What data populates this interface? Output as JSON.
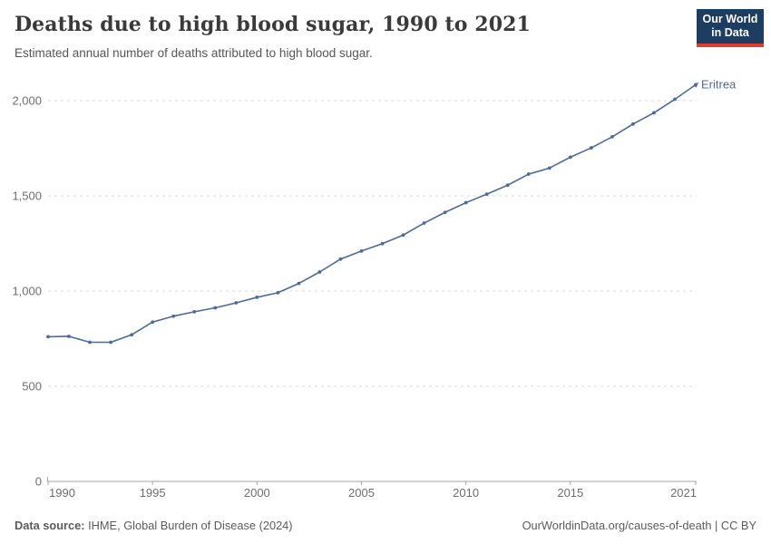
{
  "header": {
    "title": "Deaths due to high blood sugar, 1990 to 2021",
    "subtitle": "Estimated annual number of deaths attributed to high blood sugar."
  },
  "logo": {
    "line1": "Our World",
    "line2": "in Data",
    "bg_color": "#1d3d63",
    "bar_color": "#dc3e32"
  },
  "chart_data": {
    "type": "line",
    "title": "Deaths due to high blood sugar, 1990 to 2021",
    "xlabel": "",
    "ylabel": "",
    "xlim": [
      1990,
      2021
    ],
    "ylim": [
      0,
      2100
    ],
    "grid": "horizontal-dashed",
    "legend_position": "end-of-line-label",
    "x_ticks": [
      1990,
      1995,
      2000,
      2005,
      2010,
      2015,
      2021
    ],
    "y_ticks": [
      0,
      500,
      1000,
      1500,
      2000
    ],
    "series": [
      {
        "name": "Eritrea",
        "color": "#4C6A9C",
        "x": [
          1990,
          1991,
          1992,
          1993,
          1994,
          1995,
          1996,
          1997,
          1998,
          1999,
          2000,
          2001,
          2002,
          2003,
          2004,
          2005,
          2006,
          2007,
          2008,
          2009,
          2010,
          2011,
          2012,
          2013,
          2014,
          2015,
          2016,
          2017,
          2018,
          2019,
          2020,
          2021
        ],
        "values": [
          760,
          762,
          731,
          731,
          770,
          837,
          868,
          891,
          912,
          938,
          967,
          991,
          1040,
          1100,
          1168,
          1210,
          1249,
          1294,
          1357,
          1413,
          1464,
          1509,
          1556,
          1614,
          1646,
          1703,
          1752,
          1810,
          1877,
          1936,
          2007,
          2084
        ]
      }
    ]
  },
  "footer": {
    "source_label": "Data source:",
    "source_text": " IHME, Global Burden of Disease (2024)",
    "link_text": "OurWorldinData.org/causes-of-death",
    "license_text": " | CC BY"
  },
  "colors": {
    "accent": "#4C6A9C",
    "grid": "#dadada",
    "axis": "#a5a5a5",
    "tick_label": "#6e6e6e",
    "title": "#3a3a3a"
  }
}
